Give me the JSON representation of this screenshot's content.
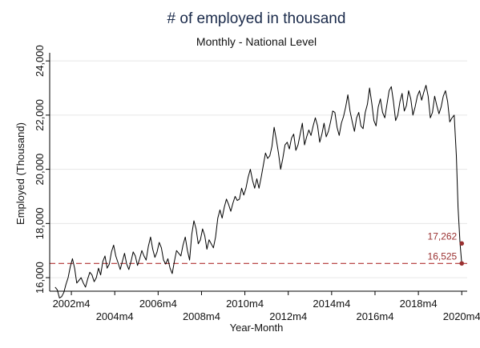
{
  "chart_data": {
    "type": "line",
    "title": "# of employed in thousand",
    "subtitle": "Monthly - National Level",
    "xlabel": "Year-Month",
    "ylabel": "Employed (Thousand)",
    "ylim": [
      15500,
      24300
    ],
    "yticks": [
      16000,
      18000,
      20000,
      22000,
      24000
    ],
    "ytick_labels": [
      "16,000",
      "18,000",
      "20,000",
      "22,000",
      "24,000"
    ],
    "xlim": [
      2001.25,
      2020.5
    ],
    "xticks": [
      {
        "label": "2002m4",
        "value": 2002.25
      },
      {
        "label": "2004m4",
        "value": 2004.25
      },
      {
        "label": "2006m4",
        "value": 2006.25
      },
      {
        "label": "2008m4",
        "value": 2008.25
      },
      {
        "label": "2010m4",
        "value": 2010.25
      },
      {
        "label": "2012m4",
        "value": 2012.25
      },
      {
        "label": "2014m4",
        "value": 2014.25
      },
      {
        "label": "2016m4",
        "value": 2016.25
      },
      {
        "label": "2018m4",
        "value": 2018.25
      },
      {
        "label": "2020m4",
        "value": 2020.25
      }
    ],
    "grid": true,
    "reference_line": {
      "y": 16525,
      "color": "#b03030",
      "style": "dashed"
    },
    "annotations": [
      {
        "label": "17,262",
        "x": 2020.25,
        "y": 17262
      },
      {
        "label": "16,525",
        "x": 2020.25,
        "y": 16525
      }
    ],
    "series": [
      {
        "color": "#000000",
        "points": [
          [
            2001.5,
            15650
          ],
          [
            2001.6,
            15550
          ],
          [
            2001.7,
            15250
          ],
          [
            2001.8,
            15300
          ],
          [
            2001.9,
            15450
          ],
          [
            2002.0,
            15750
          ],
          [
            2002.1,
            16000
          ],
          [
            2002.2,
            16400
          ],
          [
            2002.3,
            16700
          ],
          [
            2002.4,
            16350
          ],
          [
            2002.5,
            15800
          ],
          [
            2002.6,
            15900
          ],
          [
            2002.7,
            16000
          ],
          [
            2002.8,
            15800
          ],
          [
            2002.9,
            15650
          ],
          [
            2003.0,
            15950
          ],
          [
            2003.1,
            16200
          ],
          [
            2003.2,
            16100
          ],
          [
            2003.3,
            15850
          ],
          [
            2003.4,
            16000
          ],
          [
            2003.5,
            16350
          ],
          [
            2003.6,
            16100
          ],
          [
            2003.7,
            16600
          ],
          [
            2003.8,
            16800
          ],
          [
            2003.9,
            16350
          ],
          [
            2004.0,
            16500
          ],
          [
            2004.1,
            16950
          ],
          [
            2004.2,
            17200
          ],
          [
            2004.3,
            16800
          ],
          [
            2004.4,
            16550
          ],
          [
            2004.5,
            16300
          ],
          [
            2004.6,
            16600
          ],
          [
            2004.7,
            16900
          ],
          [
            2004.8,
            16500
          ],
          [
            2004.9,
            16300
          ],
          [
            2005.0,
            16600
          ],
          [
            2005.1,
            16950
          ],
          [
            2005.2,
            16800
          ],
          [
            2005.3,
            16450
          ],
          [
            2005.4,
            16700
          ],
          [
            2005.5,
            17000
          ],
          [
            2005.6,
            16800
          ],
          [
            2005.7,
            16650
          ],
          [
            2005.8,
            17150
          ],
          [
            2005.9,
            17500
          ],
          [
            2006.0,
            17050
          ],
          [
            2006.1,
            16750
          ],
          [
            2006.2,
            16950
          ],
          [
            2006.3,
            17300
          ],
          [
            2006.4,
            17100
          ],
          [
            2006.5,
            16650
          ],
          [
            2006.6,
            16500
          ],
          [
            2006.7,
            16700
          ],
          [
            2006.8,
            16350
          ],
          [
            2006.9,
            16150
          ],
          [
            2007.0,
            16600
          ],
          [
            2007.1,
            17000
          ],
          [
            2007.2,
            16900
          ],
          [
            2007.3,
            16800
          ],
          [
            2007.4,
            17200
          ],
          [
            2007.5,
            17500
          ],
          [
            2007.6,
            17000
          ],
          [
            2007.7,
            16650
          ],
          [
            2007.8,
            17600
          ],
          [
            2007.9,
            18100
          ],
          [
            2008.0,
            17800
          ],
          [
            2008.1,
            17250
          ],
          [
            2008.2,
            17400
          ],
          [
            2008.3,
            17800
          ],
          [
            2008.4,
            17550
          ],
          [
            2008.5,
            17050
          ],
          [
            2008.6,
            17400
          ],
          [
            2008.7,
            17250
          ],
          [
            2008.8,
            17100
          ],
          [
            2008.9,
            17500
          ],
          [
            2009.0,
            18200
          ],
          [
            2009.1,
            18500
          ],
          [
            2009.2,
            18200
          ],
          [
            2009.3,
            18600
          ],
          [
            2009.4,
            18900
          ],
          [
            2009.5,
            18700
          ],
          [
            2009.6,
            18450
          ],
          [
            2009.7,
            18750
          ],
          [
            2009.8,
            19000
          ],
          [
            2009.9,
            18850
          ],
          [
            2010.0,
            18900
          ],
          [
            2010.1,
            19300
          ],
          [
            2010.2,
            19050
          ],
          [
            2010.3,
            19300
          ],
          [
            2010.4,
            19700
          ],
          [
            2010.5,
            20000
          ],
          [
            2010.6,
            19600
          ],
          [
            2010.7,
            19300
          ],
          [
            2010.8,
            19650
          ],
          [
            2010.9,
            19300
          ],
          [
            2011.0,
            19700
          ],
          [
            2011.1,
            20150
          ],
          [
            2011.2,
            20600
          ],
          [
            2011.3,
            20400
          ],
          [
            2011.4,
            20500
          ],
          [
            2011.5,
            20850
          ],
          [
            2011.6,
            21550
          ],
          [
            2011.7,
            21100
          ],
          [
            2011.8,
            20600
          ],
          [
            2011.9,
            20000
          ],
          [
            2012.0,
            20400
          ],
          [
            2012.1,
            20900
          ],
          [
            2012.2,
            21000
          ],
          [
            2012.3,
            20750
          ],
          [
            2012.4,
            21150
          ],
          [
            2012.5,
            21300
          ],
          [
            2012.6,
            20700
          ],
          [
            2012.7,
            20900
          ],
          [
            2012.8,
            21300
          ],
          [
            2012.9,
            21700
          ],
          [
            2013.0,
            20900
          ],
          [
            2013.1,
            21200
          ],
          [
            2013.2,
            21450
          ],
          [
            2013.3,
            21250
          ],
          [
            2013.4,
            21600
          ],
          [
            2013.5,
            21900
          ],
          [
            2013.6,
            21600
          ],
          [
            2013.7,
            21000
          ],
          [
            2013.8,
            21300
          ],
          [
            2013.9,
            21700
          ],
          [
            2014.0,
            21200
          ],
          [
            2014.1,
            21400
          ],
          [
            2014.2,
            21750
          ],
          [
            2014.3,
            22150
          ],
          [
            2014.4,
            22100
          ],
          [
            2014.5,
            21550
          ],
          [
            2014.6,
            21250
          ],
          [
            2014.7,
            21700
          ],
          [
            2014.8,
            21950
          ],
          [
            2014.9,
            22300
          ],
          [
            2015.0,
            22750
          ],
          [
            2015.1,
            22150
          ],
          [
            2015.2,
            21750
          ],
          [
            2015.3,
            21400
          ],
          [
            2015.4,
            21900
          ],
          [
            2015.5,
            22100
          ],
          [
            2015.6,
            21600
          ],
          [
            2015.7,
            21500
          ],
          [
            2015.8,
            22100
          ],
          [
            2015.9,
            22400
          ],
          [
            2016.0,
            23000
          ],
          [
            2016.1,
            22450
          ],
          [
            2016.2,
            21800
          ],
          [
            2016.3,
            21600
          ],
          [
            2016.4,
            22300
          ],
          [
            2016.5,
            22600
          ],
          [
            2016.6,
            22100
          ],
          [
            2016.7,
            21900
          ],
          [
            2016.8,
            22400
          ],
          [
            2016.9,
            22900
          ],
          [
            2017.0,
            23050
          ],
          [
            2017.1,
            22500
          ],
          [
            2017.2,
            21800
          ],
          [
            2017.3,
            22000
          ],
          [
            2017.4,
            22500
          ],
          [
            2017.5,
            22800
          ],
          [
            2017.6,
            22150
          ],
          [
            2017.7,
            22350
          ],
          [
            2017.8,
            22900
          ],
          [
            2017.9,
            22600
          ],
          [
            2018.0,
            22000
          ],
          [
            2018.1,
            22300
          ],
          [
            2018.2,
            22700
          ],
          [
            2018.3,
            22900
          ],
          [
            2018.4,
            22550
          ],
          [
            2018.5,
            22850
          ],
          [
            2018.6,
            23100
          ],
          [
            2018.7,
            22700
          ],
          [
            2018.8,
            21900
          ],
          [
            2018.9,
            22100
          ],
          [
            2019.0,
            22700
          ],
          [
            2019.1,
            22350
          ],
          [
            2019.2,
            22050
          ],
          [
            2019.3,
            22300
          ],
          [
            2019.4,
            22700
          ],
          [
            2019.5,
            22900
          ],
          [
            2019.6,
            22500
          ],
          [
            2019.7,
            21750
          ],
          [
            2019.8,
            21900
          ],
          [
            2019.9,
            22000
          ],
          [
            2020.0,
            20500
          ],
          [
            2020.08,
            18600
          ],
          [
            2020.17,
            17262
          ],
          [
            2020.25,
            16525
          ]
        ]
      }
    ]
  }
}
